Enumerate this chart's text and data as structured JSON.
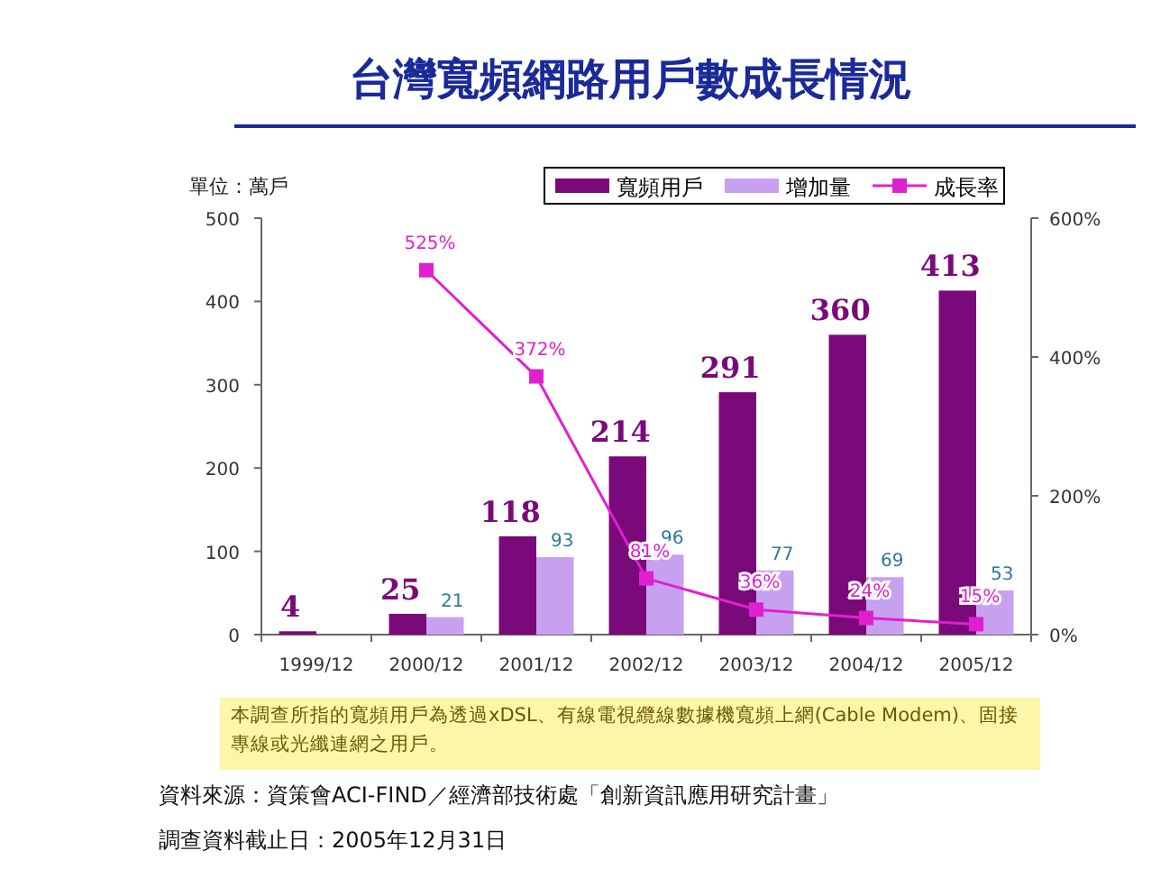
{
  "chart_data": {
    "type": "bar",
    "title": "台灣寬頻網路用戶數成長情況",
    "ylabel": "單位：萬戶",
    "categories": [
      "1999/12",
      "2000/12",
      "2001/12",
      "2002/12",
      "2003/12",
      "2004/12",
      "2005/12"
    ],
    "series": [
      {
        "name": "寬頻用戶",
        "color": "#7a0a7a",
        "values": [
          4,
          25,
          118,
          214,
          291,
          360,
          413
        ],
        "value_labels": [
          "4",
          "25",
          "118",
          "214",
          "291",
          "360",
          "413"
        ]
      },
      {
        "name": "增加量",
        "color": "#c8a0f0",
        "values": [
          null,
          21,
          93,
          96,
          77,
          69,
          53
        ],
        "value_labels": [
          null,
          "21",
          "93",
          "96",
          "77",
          "69",
          "53"
        ]
      },
      {
        "name": "成長率",
        "type": "line",
        "axis": "y2",
        "color": "#e020d0",
        "marker": "square",
        "values": [
          null,
          525,
          372,
          81,
          36,
          24,
          15
        ],
        "value_labels": [
          null,
          "525%",
          "372%",
          "81%",
          "36%",
          "24%",
          "15%"
        ]
      }
    ],
    "ylim": [
      0,
      500
    ],
    "yticks": [
      0,
      100,
      200,
      300,
      400,
      500
    ],
    "y2lim": [
      0,
      600
    ],
    "y2ticks": [
      {
        "value": 0,
        "label": "0%"
      },
      {
        "value": 200,
        "label": "200%"
      },
      {
        "value": 400,
        "label": "400%"
      },
      {
        "value": 600,
        "label": "600%"
      }
    ],
    "grid": false,
    "legend": "top right",
    "annotations": [
      "本調查所指的寬頻用戶為透過xDSL、有線電視纜線數據機寬頻上網(Cable Modem)、固接專線或光纖連網之用戶。",
      "資料來源：資策會ACI-FIND／經濟部技術處「創新資訊應用研究計畫」",
      "調查資料截止日：2005年12月31日"
    ]
  }
}
